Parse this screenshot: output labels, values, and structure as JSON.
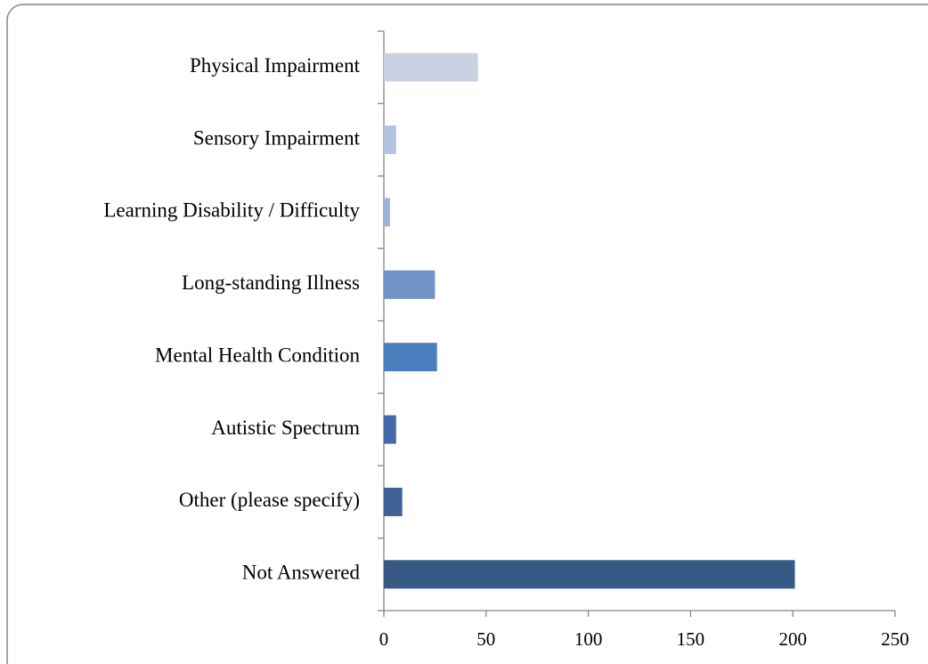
{
  "chart_data": {
    "type": "bar",
    "orientation": "horizontal",
    "categories": [
      "Physical Impairment",
      "Sensory Impairment",
      "Learning Disability / Difficulty",
      "Long-standing Illness",
      "Mental Health Condition",
      "Autistic Spectrum",
      "Other (please specify)",
      "Not Answered"
    ],
    "values": [
      46,
      6,
      3,
      25,
      26,
      6,
      9,
      201
    ],
    "colors": [
      "#c9d1e3",
      "#b3c3de",
      "#9eb2d8",
      "#7092c5",
      "#4a7ebf",
      "#4169a8",
      "#3f6295",
      "#365985"
    ],
    "xlim": [
      0,
      250
    ],
    "xticks": [
      0,
      50,
      100,
      150,
      200,
      250
    ],
    "grid": false
  }
}
